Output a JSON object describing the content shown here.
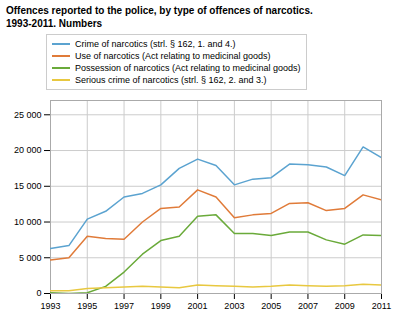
{
  "chart_data": {
    "type": "line",
    "title": "Offences reported to the police, by type of offences of narcotics.",
    "subtitle": "1993-2011. Numbers",
    "x": [
      1993,
      1994,
      1995,
      1996,
      1997,
      1998,
      1999,
      2000,
      2001,
      2002,
      2003,
      2004,
      2005,
      2006,
      2007,
      2008,
      2009,
      2010,
      2011
    ],
    "series": [
      {
        "name": "Crime of narcotics (strl. § 162, 1. and 4.)",
        "color": "#5ba3d0",
        "values": [
          6300,
          6700,
          10400,
          11500,
          13500,
          14000,
          15200,
          17500,
          18800,
          17900,
          15200,
          16000,
          16200,
          18100,
          18000,
          17700,
          16500,
          20500,
          19000
        ]
      },
      {
        "name": "Use of narcotics (Act relating to medicinal goods)",
        "color": "#e07b39",
        "values": [
          4700,
          5000,
          8000,
          7700,
          7600,
          10000,
          11900,
          12100,
          14500,
          13500,
          10600,
          11000,
          11200,
          12600,
          12700,
          11600,
          11900,
          13800,
          13100
        ]
      },
      {
        "name": "Possession of narcotics (Act relating to medicinal goods)",
        "color": "#6aaa3a",
        "values": [
          100,
          0,
          100,
          1000,
          3000,
          5500,
          7400,
          8000,
          10800,
          11000,
          8400,
          8400,
          8100,
          8600,
          8600,
          7500,
          6900,
          8200,
          8100
        ]
      },
      {
        "name": "Serious crime of narcotics (strl. § 162, 2. and 3.)",
        "color": "#e8c840",
        "values": [
          400,
          400,
          700,
          800,
          900,
          1000,
          900,
          800,
          1200,
          1100,
          1000,
          900,
          1000,
          1200,
          1100,
          1000,
          1100,
          1300,
          1200
        ]
      }
    ],
    "xlim": [
      1993,
      2011
    ],
    "xticks": [
      1993,
      1995,
      1997,
      1999,
      2001,
      2003,
      2005,
      2007,
      2009,
      2011
    ],
    "ylim": [
      0,
      27000
    ],
    "yticks": [
      0,
      {
        "value": 5000,
        "label": "5 000"
      },
      {
        "value": 10000,
        "label": "10 000"
      },
      {
        "value": 15000,
        "label": "15 000"
      },
      {
        "value": 20000,
        "label": "20 000"
      },
      {
        "value": 25000,
        "label": "25 000"
      }
    ],
    "grid": true,
    "legend": "top"
  }
}
